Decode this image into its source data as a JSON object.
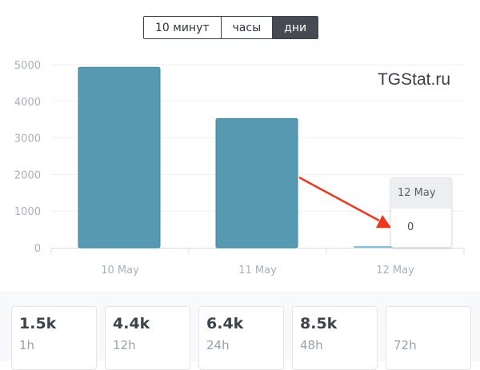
{
  "toggle": {
    "options": [
      "10 минут",
      "часы",
      "дни"
    ],
    "active": 2
  },
  "watermark": "TGStat.ru",
  "chart_data": {
    "type": "bar",
    "categories": [
      "10 May",
      "11 May",
      "12 May"
    ],
    "values": [
      4930,
      3530,
      0
    ],
    "ylim": [
      0,
      5000
    ],
    "yticks": [
      0,
      1000,
      2000,
      3000,
      4000,
      5000
    ],
    "grid": true,
    "bar_color": "#5699b0",
    "tooltip": {
      "title": "12 May",
      "value": "0"
    },
    "annotation_arrow_color": "#f0361c"
  },
  "stats": [
    {
      "value": "1.5k",
      "label": "1h"
    },
    {
      "value": "4.4k",
      "label": "12h"
    },
    {
      "value": "6.4k",
      "label": "24h"
    },
    {
      "value": "8.5k",
      "label": "48h"
    },
    {
      "value": "",
      "label": "72h"
    }
  ]
}
